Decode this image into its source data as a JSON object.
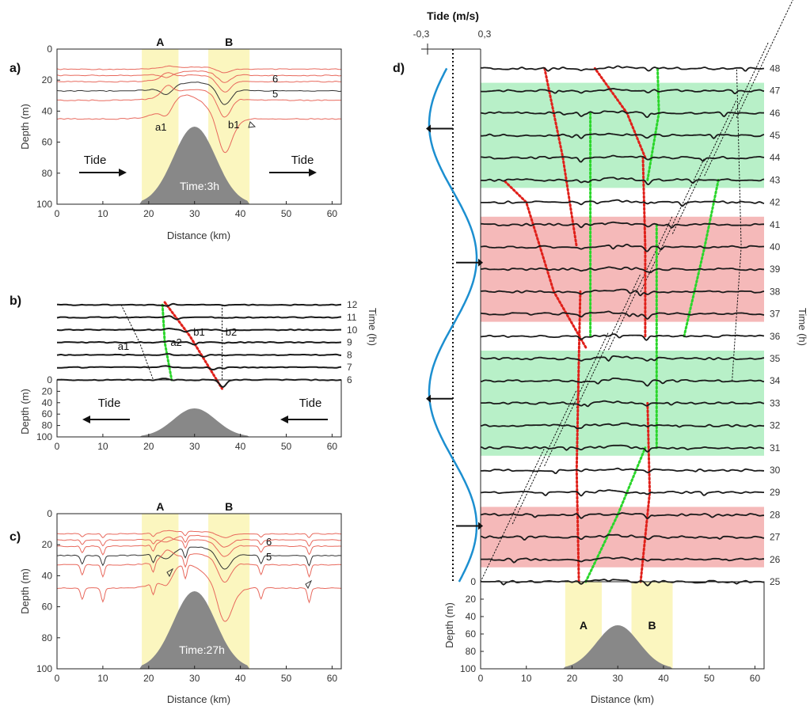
{
  "chart_data": [
    {
      "panel": "a)",
      "type": "line",
      "xlabel": "Distance (km)",
      "ylabel": "Depth (m)",
      "xlim": [
        0,
        62
      ],
      "ylim": [
        100,
        0
      ],
      "x_ticks": [
        "0",
        "10",
        "20",
        "30",
        "40",
        "50",
        "60"
      ],
      "y_ticks": [
        "0",
        "20",
        "40",
        "60",
        "80",
        "100"
      ],
      "zones": [
        {
          "label": "A",
          "x0": 18.5,
          "x1": 26.5
        },
        {
          "label": "B",
          "x0": 33,
          "x1": 42
        }
      ],
      "tide_labels": [
        "Tide",
        "Tide"
      ],
      "tide_direction": "right",
      "time_label": "Time:3h",
      "isopycnal_depths": [
        13,
        17,
        21,
        27,
        33,
        45
      ],
      "reference_line_index": 3,
      "line_numbers": [
        {
          "text": "6",
          "depth": 19
        },
        {
          "text": "5",
          "depth": 28
        }
      ],
      "annotations": [
        {
          "text": "a1",
          "x": 24,
          "y": 52
        },
        {
          "text": "b1",
          "x": 38,
          "y": 49
        }
      ]
    },
    {
      "panel": "b)",
      "type": "line",
      "xlabel": "",
      "ylabel": "Depth (m)",
      "y2label": "Time (h)",
      "xlim": [
        0,
        62
      ],
      "x_ticks": [
        "0",
        "10",
        "20",
        "30",
        "40",
        "50",
        "60"
      ],
      "y_ticks": [
        "0",
        "20",
        "40",
        "60",
        "80",
        "100"
      ],
      "tide_labels": [
        "Tide",
        "Tide"
      ],
      "tide_direction": "left",
      "time_labels": [
        "6",
        "7",
        "8",
        "9",
        "10",
        "11",
        "12"
      ],
      "annotations": [
        {
          "text": "a1",
          "label_x": 14.5
        },
        {
          "text": "a2",
          "label_x": 26
        },
        {
          "text": "b1",
          "label_x": 31
        },
        {
          "text": "b2",
          "label_x": 38
        }
      ]
    },
    {
      "panel": "c)",
      "type": "line",
      "xlabel": "Distance (km)",
      "ylabel": "Depth (m)",
      "xlim": [
        0,
        62
      ],
      "ylim": [
        100,
        0
      ],
      "x_ticks": [
        "0",
        "10",
        "20",
        "30",
        "40",
        "50",
        "60"
      ],
      "y_ticks": [
        "0",
        "20",
        "40",
        "60",
        "80",
        "100"
      ],
      "zones": [
        {
          "label": "A",
          "x0": 18.5,
          "x1": 26.5
        },
        {
          "label": "B",
          "x0": 33,
          "x1": 42
        }
      ],
      "time_label": "Time:27h",
      "isopycnal_depths": [
        13,
        17,
        21,
        27,
        33,
        48
      ],
      "reference_line_index": 3,
      "line_numbers": [
        {
          "text": "6",
          "depth": 19
        },
        {
          "text": "5",
          "depth": 28
        }
      ]
    },
    {
      "panel": "d)",
      "type": "line",
      "xlabel": "Distance (km)",
      "ylabel": "Depth (m)",
      "y2label": "Time (h)",
      "tide_axis": {
        "title": "Tide (m/s)",
        "ticks": [
          "-0,3",
          "0,3"
        ]
      },
      "xlim": [
        0,
        62
      ],
      "x_ticks": [
        "0",
        "10",
        "20",
        "30",
        "40",
        "50",
        "60"
      ],
      "y_ticks": [
        "0",
        "20",
        "40",
        "60",
        "80",
        "100"
      ],
      "time_labels": [
        "25",
        "26",
        "27",
        "28",
        "29",
        "30",
        "31",
        "32",
        "33",
        "34",
        "35",
        "36",
        "37",
        "38",
        "39",
        "40",
        "41",
        "42",
        "43",
        "44",
        "45",
        "46",
        "47",
        "48"
      ],
      "shaded_hours": [
        {
          "from": 26,
          "to": 28,
          "color": "#f5b9b9"
        },
        {
          "from": 31,
          "to": 35,
          "color": "#b8f0c8"
        },
        {
          "from": 37,
          "to": 41,
          "color": "#f5b9b9"
        },
        {
          "from": 43,
          "to": 47,
          "color": "#b8f0c8"
        }
      ],
      "zones": [
        {
          "label": "A",
          "x0": 18.5,
          "x1": 26.5
        },
        {
          "label": "B",
          "x0": 33,
          "x1": 42
        }
      ],
      "tide_arrow_hours": [
        27.5,
        33.2,
        39.3,
        45.3
      ]
    }
  ],
  "colors": {
    "zone_yellow": "#fbf6bf",
    "seamount": "#888888",
    "red_line": "#e8695d",
    "black_line": "#1a1a1a",
    "red_dot": "#e0201a",
    "green_dot": "#2bd62b",
    "tide_curve": "#1c8fd0"
  }
}
